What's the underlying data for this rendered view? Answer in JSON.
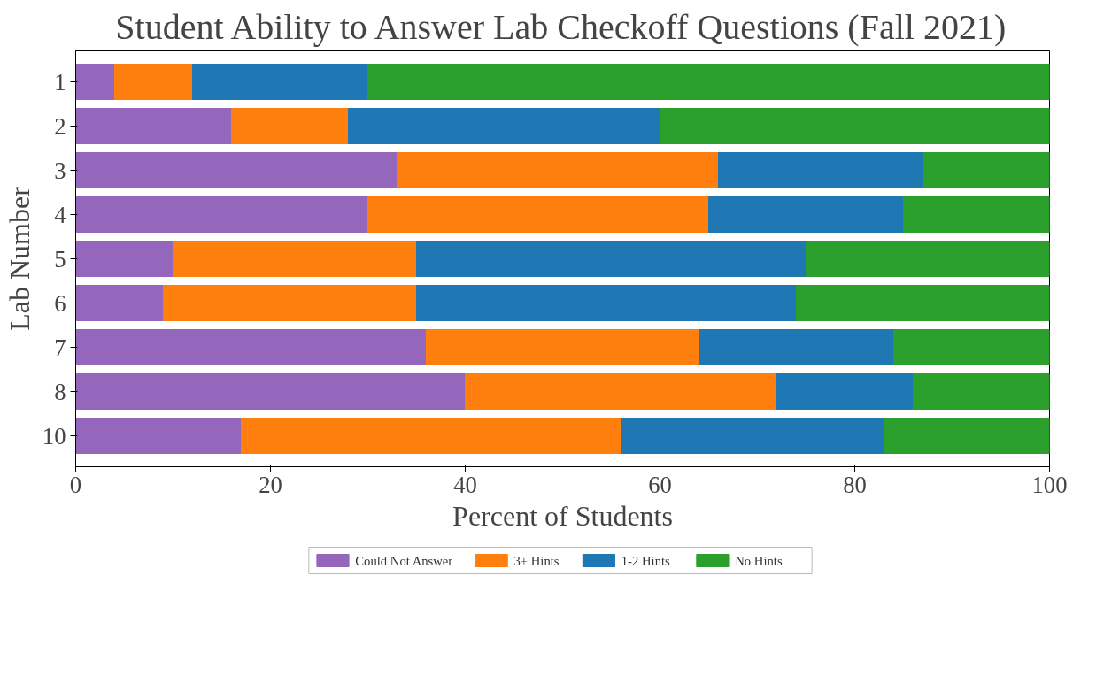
{
  "chart_data": {
    "type": "bar",
    "orientation": "horizontal",
    "stacked": true,
    "title": "Student Ability to Answer Lab Checkoff Questions (Fall 2021)",
    "xlabel": "Percent of Students",
    "ylabel": "Lab Number",
    "categories": [
      "1",
      "2",
      "3",
      "4",
      "5",
      "6",
      "7",
      "8",
      "10"
    ],
    "series": [
      {
        "name": "Could Not Answer",
        "color": "#9467bd",
        "values": [
          4,
          16,
          33,
          30,
          10,
          9,
          36,
          40,
          17
        ]
      },
      {
        "name": "3+ Hints",
        "color": "#ff7f0e",
        "values": [
          8,
          12,
          33,
          35,
          25,
          26,
          28,
          32,
          39
        ]
      },
      {
        "name": "1-2 Hints",
        "color": "#1f77b4",
        "values": [
          18,
          32,
          21,
          20,
          40,
          39,
          20,
          14,
          27
        ]
      },
      {
        "name": "No Hints",
        "color": "#2ca02c",
        "values": [
          70,
          40,
          13,
          15,
          25,
          26,
          16,
          14,
          17
        ]
      }
    ],
    "xlim": [
      0,
      100
    ],
    "xticks": [
      0,
      20,
      40,
      60,
      80,
      100
    ],
    "grid": false,
    "legend": "bottom"
  }
}
